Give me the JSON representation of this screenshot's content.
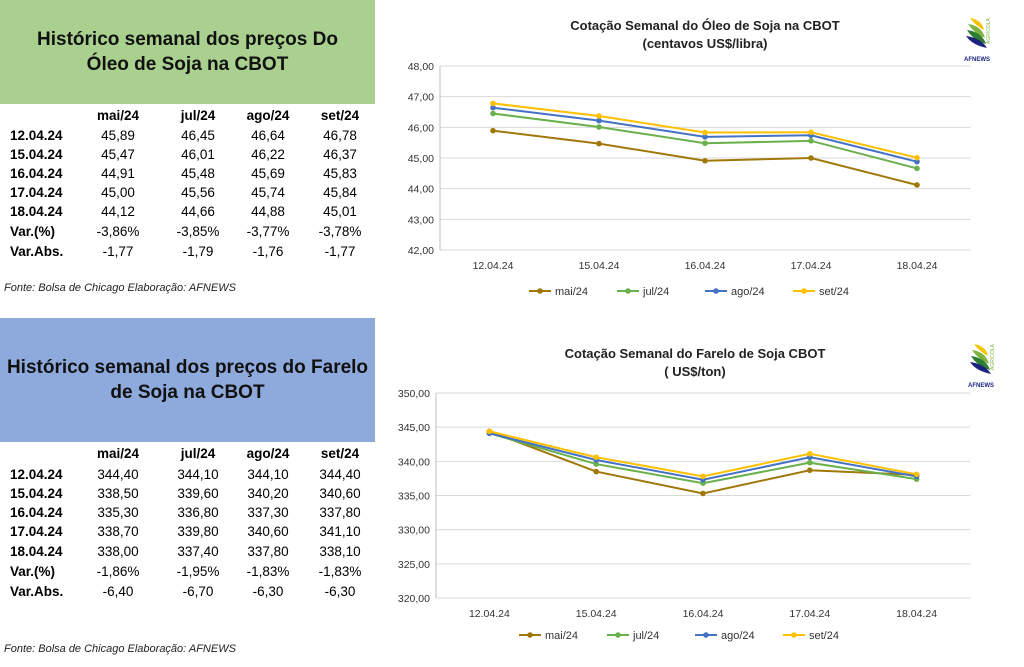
{
  "panels": [
    {
      "title": "Histórico semanal dos preços Do Óleo de Soja na CBOT",
      "columns": [
        "mai/24",
        "jul/24",
        "ago/24",
        "set/24"
      ],
      "rows": [
        {
          "label": "12.04.24",
          "values": [
            "45,89",
            "46,45",
            "46,64",
            "46,78"
          ]
        },
        {
          "label": "15.04.24",
          "values": [
            "45,47",
            "46,01",
            "46,22",
            "46,37"
          ]
        },
        {
          "label": "16.04.24",
          "values": [
            "44,91",
            "45,48",
            "45,69",
            "45,83"
          ]
        },
        {
          "label": "17.04.24",
          "values": [
            "45,00",
            "45,56",
            "45,74",
            "45,84"
          ]
        },
        {
          "label": "18.04.24",
          "values": [
            "44,12",
            "44,66",
            "44,88",
            "45,01"
          ]
        },
        {
          "label": "Var.(%)",
          "values": [
            "-3,86%",
            "-3,85%",
            "-3,77%",
            "-3,78%"
          ]
        },
        {
          "label": "Var.Abs.",
          "values": [
            "-1,77",
            "-1,79",
            "-1,76",
            "-1,77"
          ]
        }
      ],
      "source": "Fonte: Bolsa de Chicago Elaboração: AFNEWS"
    },
    {
      "title": "Histórico semanal dos preços do Farelo de Soja na CBOT",
      "columns": [
        "mai/24",
        "jul/24",
        "ago/24",
        "set/24"
      ],
      "rows": [
        {
          "label": "12.04.24",
          "values": [
            "344,40",
            "344,10",
            "344,10",
            "344,40"
          ]
        },
        {
          "label": "15.04.24",
          "values": [
            "338,50",
            "339,60",
            "340,20",
            "340,60"
          ]
        },
        {
          "label": "16.04.24",
          "values": [
            "335,30",
            "336,80",
            "337,30",
            "337,80"
          ]
        },
        {
          "label": "17.04.24",
          "values": [
            "338,70",
            "339,80",
            "340,60",
            "341,10"
          ]
        },
        {
          "label": "18.04.24",
          "values": [
            "338,00",
            "337,40",
            "337,80",
            "338,10"
          ]
        },
        {
          "label": "Var.(%)",
          "values": [
            "-1,86%",
            "-1,95%",
            "-1,83%",
            "-1,83%"
          ]
        },
        {
          "label": "Var.Abs.",
          "values": [
            "-6,40",
            "-6,70",
            "-6,30",
            "-6,30"
          ]
        }
      ],
      "source": "Fonte: Bolsa de Chicago Elaboração: AFNEWS"
    }
  ],
  "logo": {
    "text": "AFNEWS",
    "subtext": "AGRÍCOLA",
    "colors": [
      "#f5c400",
      "#7cb342",
      "#2e7d32",
      "#1a237e"
    ]
  },
  "chart_data": [
    {
      "type": "line",
      "title": "Cotação Semanal do Óleo de Soja na CBOT",
      "subtitle": "(centavos US$/libra)",
      "x": [
        "12.04.24",
        "15.04.24",
        "16.04.24",
        "17.04.24",
        "18.04.24"
      ],
      "yticks": [
        "42,00",
        "43,00",
        "44,00",
        "45,00",
        "46,00",
        "47,00",
        "48,00"
      ],
      "ylim": [
        42,
        48
      ],
      "grid": true,
      "legend_position": "bottom",
      "series": [
        {
          "name": "mai/24",
          "color": "#a0780a",
          "values": [
            45.89,
            45.47,
            44.91,
            45.0,
            44.12
          ]
        },
        {
          "name": "jul/24",
          "color": "#6ab04c",
          "values": [
            46.45,
            46.01,
            45.48,
            45.56,
            44.66
          ]
        },
        {
          "name": "ago/24",
          "color": "#4472c4",
          "values": [
            46.64,
            46.22,
            45.69,
            45.74,
            44.88
          ]
        },
        {
          "name": "set/24",
          "color": "#ffc000",
          "values": [
            46.78,
            46.37,
            45.83,
            45.84,
            45.01
          ]
        }
      ]
    },
    {
      "type": "line",
      "title": "Cotação Semanal do Farelo de Soja CBOT",
      "subtitle": "( US$/ton)",
      "x": [
        "12.04.24",
        "15.04.24",
        "16.04.24",
        "17.04.24",
        "18.04.24"
      ],
      "yticks": [
        "320,00",
        "325,00",
        "330,00",
        "335,00",
        "340,00",
        "345,00",
        "350,00"
      ],
      "ylim": [
        320,
        350
      ],
      "grid": true,
      "legend_position": "bottom",
      "series": [
        {
          "name": "mai/24",
          "color": "#a0780a",
          "values": [
            344.4,
            338.5,
            335.3,
            338.7,
            338.0
          ]
        },
        {
          "name": "jul/24",
          "color": "#6ab04c",
          "values": [
            344.1,
            339.6,
            336.8,
            339.8,
            337.4
          ]
        },
        {
          "name": "ago/24",
          "color": "#4472c4",
          "values": [
            344.1,
            340.2,
            337.3,
            340.6,
            337.8
          ]
        },
        {
          "name": "set/24",
          "color": "#ffc000",
          "values": [
            344.4,
            340.6,
            337.8,
            341.1,
            338.1
          ]
        }
      ]
    }
  ]
}
